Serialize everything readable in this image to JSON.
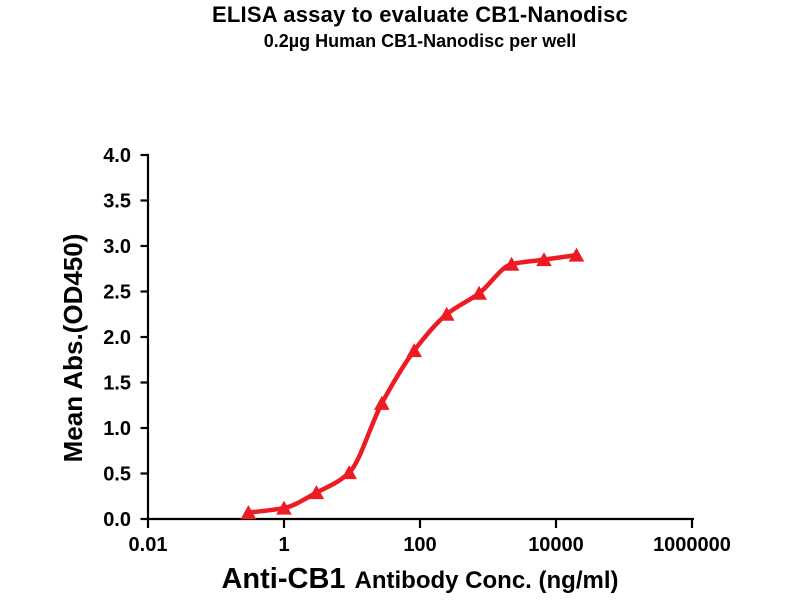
{
  "header": {
    "title": "ELISA assay to evaluate CB1-Nanodisc",
    "subtitle": "0.2µg Human CB1-Nanodisc per well"
  },
  "chart_data": {
    "type": "scatter",
    "curve_fit": "4PL sigmoid through points",
    "title": "ELISA assay to evaluate CB1-Nanodisc",
    "subtitle": "0.2µg Human CB1-Nanodisc per well",
    "xlabel_emph": "Anti-CB1",
    "xlabel_rest": "Antibody Conc. (ng/ml)",
    "ylabel": "Mean Abs.(OD450)",
    "x_scale": "log10",
    "xlim": [
      0.01,
      1000000
    ],
    "ylim": [
      0,
      4
    ],
    "grid": false,
    "legend": null,
    "x_ticks": [
      {
        "value": 0.01,
        "label": "0.01"
      },
      {
        "value": 1,
        "label": "1"
      },
      {
        "value": 100,
        "label": "100"
      },
      {
        "value": 10000,
        "label": "10000"
      },
      {
        "value": 1000000,
        "label": "1000000"
      }
    ],
    "y_ticks": [
      {
        "value": 0.0,
        "label": "0.0"
      },
      {
        "value": 0.5,
        "label": "0.5"
      },
      {
        "value": 1.0,
        "label": "1.0"
      },
      {
        "value": 1.5,
        "label": "1.5"
      },
      {
        "value": 2.0,
        "label": "2.0"
      },
      {
        "value": 2.5,
        "label": "2.5"
      },
      {
        "value": 3.0,
        "label": "3.0"
      },
      {
        "value": 3.5,
        "label": "3.5"
      },
      {
        "value": 4.0,
        "label": "4.0"
      }
    ],
    "series": [
      {
        "name": "Human CB1-Nanodisc",
        "marker": "triangle-up",
        "color": "#ed1c24",
        "points": [
          {
            "x": 0.3,
            "y": 0.07
          },
          {
            "x": 1,
            "y": 0.12
          },
          {
            "x": 3,
            "y": 0.29
          },
          {
            "x": 9.1,
            "y": 0.51
          },
          {
            "x": 27.4,
            "y": 1.27
          },
          {
            "x": 82.3,
            "y": 1.85
          },
          {
            "x": 247,
            "y": 2.25
          },
          {
            "x": 741,
            "y": 2.48
          },
          {
            "x": 2222,
            "y": 2.8
          },
          {
            "x": 6667,
            "y": 2.85
          },
          {
            "x": 20000,
            "y": 2.9
          }
        ]
      }
    ]
  },
  "colors": {
    "accent": "#ed1c24",
    "axis": "#000000",
    "text": "#000000",
    "background": "#ffffff"
  }
}
